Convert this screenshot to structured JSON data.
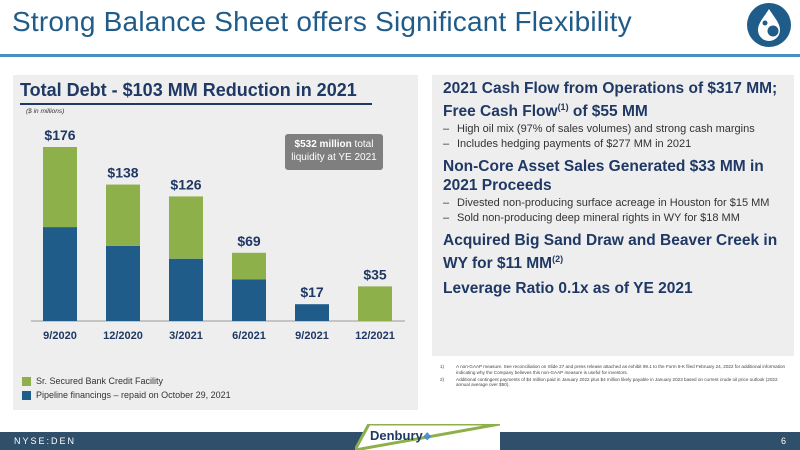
{
  "slide": {
    "title": "Strong Balance Sheet offers Significant Flexibility",
    "page_number": "6",
    "footer_ticker": "NYSE:DEN",
    "brand": "Denbury"
  },
  "callout": {
    "bold": "$532 million",
    "rest1": " total",
    "rest2": "liquidity at YE 2021"
  },
  "legend": [
    {
      "label": "Sr. Secured Bank Credit Facility",
      "color": "#8db04a"
    },
    {
      "label": "Pipeline financings – repaid on October 29, 2021",
      "color": "#1f5c8a"
    }
  ],
  "right": {
    "groups": [
      {
        "heading_a": "2021 Cash Flow from Operations of $317 MM; Free Cash Flow",
        "heading_sup": "(1)",
        "heading_b": " of $55 MM",
        "subs": [
          "High oil mix (97% of sales volumes) and strong cash margins",
          "Includes hedging payments of $277 MM in 2021"
        ]
      },
      {
        "heading_a": "Non-Core Asset Sales Generated $33 MM in 2021 Proceeds",
        "heading_sup": "",
        "heading_b": "",
        "subs": [
          "Divested non-producing surface acreage in Houston for $15 MM",
          "Sold non-producing deep mineral rights in WY for $18 MM"
        ]
      },
      {
        "heading_a": "Acquired Big Sand Draw and Beaver Creek in WY for $11 MM",
        "heading_sup": "(2)",
        "heading_b": "",
        "subs": []
      },
      {
        "heading_a": "Leverage Ratio 0.1x as of YE 2021",
        "heading_sup": "",
        "heading_b": "",
        "subs": []
      }
    ],
    "footnotes": [
      {
        "n": "1)",
        "text": "A non-GAAP measure. See reconciliation on Slide 27 and press release attached as exhibit 99.1 to the Form 8-K filed February 24, 2022 for additional information indicating why the Company believes this non-GAAP measure is useful for investors."
      },
      {
        "n": "2)",
        "text": "Additional contingent payments of $4 million paid in January 2022 plus $4 million likely payable in January 2023 based on current crude oil price outlook (2022 annual average over $50)."
      }
    ]
  },
  "chart_data": {
    "type": "bar",
    "stacked": true,
    "title": "Total Debt - $103 MM Reduction in 2021",
    "units_note": "($ in millions)",
    "categories": [
      "9/2020",
      "12/2020",
      "3/2021",
      "6/2021",
      "9/2021",
      "12/2021"
    ],
    "series": [
      {
        "name": "Pipeline financings – repaid on October 29, 2021",
        "color": "#1f5c8a",
        "values": [
          95,
          76,
          63,
          42,
          17,
          0
        ]
      },
      {
        "name": "Sr. Secured Bank Credit Facility",
        "color": "#8db04a",
        "values": [
          81,
          62,
          63,
          27,
          0,
          35
        ]
      }
    ],
    "totals_labels": [
      "$176",
      "$138",
      "$126",
      "$69",
      "$17",
      "$35"
    ],
    "totals": [
      176,
      138,
      126,
      69,
      17,
      35
    ],
    "ylim": [
      0,
      176
    ]
  }
}
